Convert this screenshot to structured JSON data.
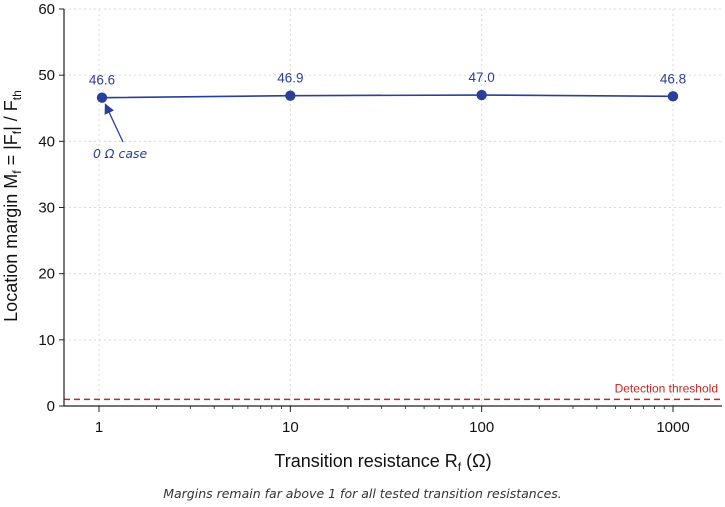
{
  "chart_data": {
    "type": "line",
    "x": [
      1,
      10,
      100,
      1000
    ],
    "xscale": "log",
    "xticks": [
      "1",
      "10",
      "100",
      "1000"
    ],
    "xlabel_main": "Transition resistance R",
    "xlabel_sub": "f",
    "xlabel_unit": " (Ω)",
    "ylabel_pre": "Location margin M",
    "ylabel_sub1": "f",
    "ylabel_mid": " = |F",
    "ylabel_sub2": "f",
    "ylabel_post": "| / F",
    "ylabel_sub3": "th",
    "ylim": [
      0,
      60
    ],
    "yticks": [
      "0",
      "10",
      "20",
      "30",
      "40",
      "50",
      "60"
    ],
    "grid": true,
    "series": [
      {
        "values": [
          46.6,
          46.9,
          47.0,
          46.8
        ],
        "labels": [
          "46.6",
          "46.9",
          "47.0",
          "46.8"
        ],
        "color": "#2a3f9a"
      }
    ],
    "threshold": {
      "value": 1,
      "label": "Detection threshold",
      "color": "#c62828"
    },
    "annotation": {
      "text": "0 Ω case",
      "target_x": 1,
      "target_y": 46.6
    }
  },
  "caption": "Margins remain far above 1 for all tested transition resistances."
}
